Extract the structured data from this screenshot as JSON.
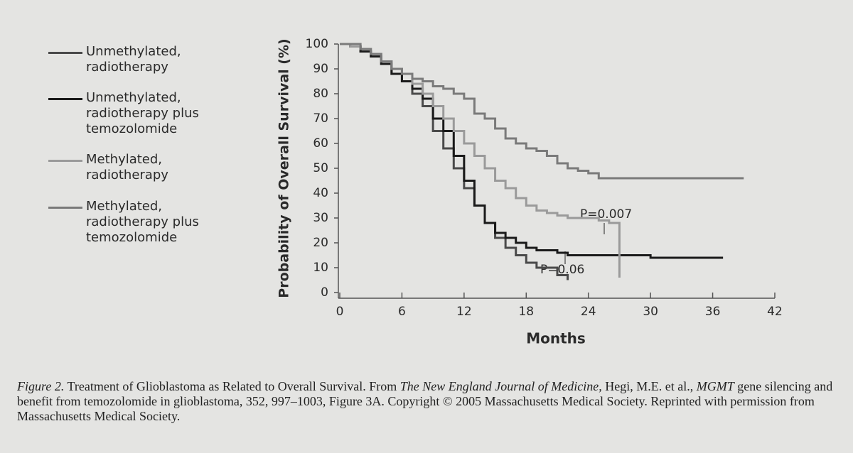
{
  "chart_data": {
    "type": "line",
    "step": true,
    "ylabel": "Probability of Overall Survival (%)",
    "xlabel": "Months",
    "x": [
      0,
      1,
      2,
      3,
      4,
      5,
      6,
      7,
      8,
      9,
      10,
      11,
      12,
      13,
      14,
      15,
      16,
      17,
      18,
      19,
      20,
      21,
      22,
      23,
      24,
      25,
      26,
      27,
      28,
      29,
      30,
      31,
      32,
      33,
      34,
      35,
      36,
      37,
      38,
      39
    ],
    "series": [
      {
        "name": "Unmethylated, radiotherapy",
        "color": "#4a4a4a",
        "values": [
          100,
          99,
          97,
          95,
          92,
          88,
          85,
          80,
          75,
          65,
          58,
          50,
          42,
          35,
          28,
          22,
          18,
          15,
          12,
          10,
          10,
          7,
          5,
          null,
          null,
          null,
          null,
          null,
          null,
          null,
          null,
          null,
          null,
          null,
          null,
          null,
          null,
          null,
          null,
          null
        ]
      },
      {
        "name": "Unmethylated, radiotherapy plus temozolomide",
        "color": "#1a1a1a",
        "values": [
          100,
          99,
          97,
          95,
          92,
          88,
          85,
          82,
          78,
          70,
          65,
          55,
          45,
          35,
          28,
          24,
          22,
          20,
          18,
          17,
          17,
          16,
          15,
          15,
          15,
          15,
          15,
          15,
          15,
          15,
          14,
          14,
          14,
          14,
          14,
          14,
          14,
          14,
          null,
          null
        ]
      },
      {
        "name": "Methylated, radiotherapy",
        "color": "#9a9a9a",
        "values": [
          100,
          99,
          98,
          96,
          93,
          90,
          88,
          84,
          80,
          75,
          70,
          65,
          60,
          55,
          50,
          45,
          42,
          38,
          35,
          33,
          32,
          31,
          30,
          30,
          30,
          29,
          28,
          6,
          null,
          null,
          null,
          null,
          null,
          null,
          null,
          null,
          null,
          null,
          null,
          null
        ]
      },
      {
        "name": "Methylated, radiotherapy plus temozolomide",
        "color": "#7a7a7a",
        "values": [
          100,
          100,
          98,
          96,
          93,
          90,
          88,
          86,
          85,
          83,
          82,
          80,
          78,
          72,
          70,
          66,
          62,
          60,
          58,
          57,
          55,
          52,
          50,
          49,
          48,
          46,
          46,
          46,
          46,
          46,
          46,
          46,
          46,
          46,
          46,
          46,
          46,
          46,
          46,
          46
        ]
      }
    ],
    "xlim": [
      0,
      42
    ],
    "xticks": [
      0,
      6,
      12,
      18,
      24,
      30,
      36,
      42
    ],
    "ylim": [
      0,
      100
    ],
    "yticks": [
      0,
      10,
      20,
      30,
      40,
      50,
      60,
      70,
      80,
      90,
      100
    ],
    "annotations": [
      "P=0.007",
      "P=0.06"
    ],
    "caption": [
      "Figure 2.",
      "Treatment of Glioblastoma as Related to Overall Survival. From",
      "The New England Journal of Medicine,",
      "Hegi, M.E. et al.,",
      "MGMT",
      "gene silencing and benefit from temozolomide in glioblastoma, 352, 997–1003, Figure 3A. Copyright © 2005 Massachusetts Medical Society. Reprinted with permission from Massachusetts Medical Society."
    ]
  }
}
